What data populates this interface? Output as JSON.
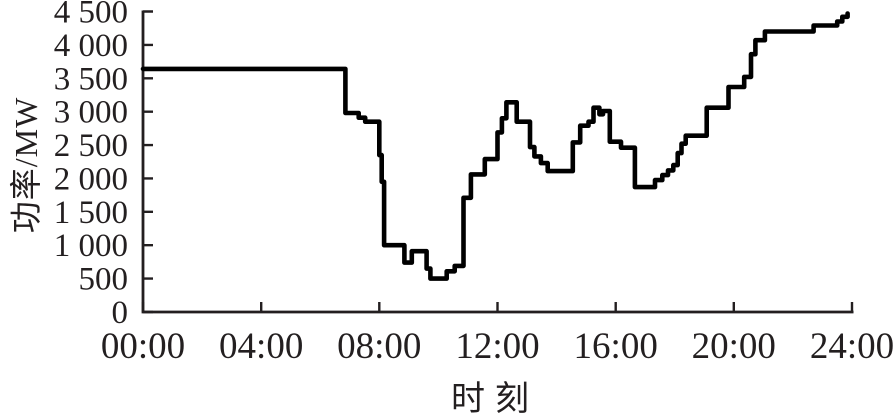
{
  "figure": {
    "background": "#ffffff",
    "text_color": "#231f20",
    "axis_color": "#231f20"
  },
  "chart_data": {
    "type": "line",
    "style": "step-after",
    "title": "",
    "xlabel": "时刻",
    "ylabel": "功率/MW",
    "xlim": [
      0,
      24
    ],
    "ylim": [
      0,
      4500
    ],
    "grid": false,
    "legend": "none",
    "x_ticks": [
      {
        "hour": 0,
        "label": "00:00"
      },
      {
        "hour": 4,
        "label": "04:00"
      },
      {
        "hour": 8,
        "label": "08:00"
      },
      {
        "hour": 12,
        "label": "12:00"
      },
      {
        "hour": 16,
        "label": "16:00"
      },
      {
        "hour": 20,
        "label": "20:00"
      },
      {
        "hour": 24,
        "label": "24:00"
      }
    ],
    "y_ticks": [
      {
        "value": 0,
        "label": "0"
      },
      {
        "value": 500,
        "label": "500"
      },
      {
        "value": 1000,
        "label": "1 000"
      },
      {
        "value": 1500,
        "label": "1 500"
      },
      {
        "value": 2000,
        "label": "2 000"
      },
      {
        "value": 2500,
        "label": "2 500"
      },
      {
        "value": 3000,
        "label": "3 000"
      },
      {
        "value": 3500,
        "label": "3 500"
      },
      {
        "value": 4000,
        "label": "4 000"
      },
      {
        "value": 4500,
        "label": "4 500"
      }
    ],
    "series": [
      {
        "name": "功率",
        "color": "#000000",
        "unit": "MW",
        "points_format": "[hour, MW] step-after",
        "points": [
          [
            0.0,
            3640
          ],
          [
            6.85,
            2980
          ],
          [
            7.3,
            2910
          ],
          [
            7.52,
            2850
          ],
          [
            8.0,
            2350
          ],
          [
            8.08,
            1950
          ],
          [
            8.16,
            1000
          ],
          [
            8.85,
            740
          ],
          [
            9.1,
            910
          ],
          [
            9.6,
            650
          ],
          [
            9.73,
            500
          ],
          [
            10.28,
            610
          ],
          [
            10.55,
            690
          ],
          [
            10.85,
            1710
          ],
          [
            11.1,
            2060
          ],
          [
            11.57,
            2290
          ],
          [
            12.0,
            2690
          ],
          [
            12.15,
            2900
          ],
          [
            12.3,
            3140
          ],
          [
            12.65,
            2850
          ],
          [
            13.1,
            2470
          ],
          [
            13.25,
            2330
          ],
          [
            13.47,
            2230
          ],
          [
            13.7,
            2110
          ],
          [
            14.55,
            2540
          ],
          [
            14.8,
            2790
          ],
          [
            15.08,
            2850
          ],
          [
            15.25,
            3060
          ],
          [
            15.45,
            2960
          ],
          [
            15.57,
            3010
          ],
          [
            15.8,
            2550
          ],
          [
            16.18,
            2460
          ],
          [
            16.65,
            1870
          ],
          [
            17.33,
            1975
          ],
          [
            17.58,
            2050
          ],
          [
            17.77,
            2120
          ],
          [
            17.95,
            2200
          ],
          [
            18.1,
            2380
          ],
          [
            18.23,
            2520
          ],
          [
            18.37,
            2640
          ],
          [
            19.08,
            3060
          ],
          [
            19.82,
            3370
          ],
          [
            20.35,
            3520
          ],
          [
            20.58,
            3860
          ],
          [
            20.73,
            4070
          ],
          [
            21.05,
            4200
          ],
          [
            22.7,
            4290
          ],
          [
            23.5,
            4350
          ],
          [
            23.67,
            4420
          ],
          [
            23.85,
            4470
          ]
        ]
      }
    ]
  }
}
